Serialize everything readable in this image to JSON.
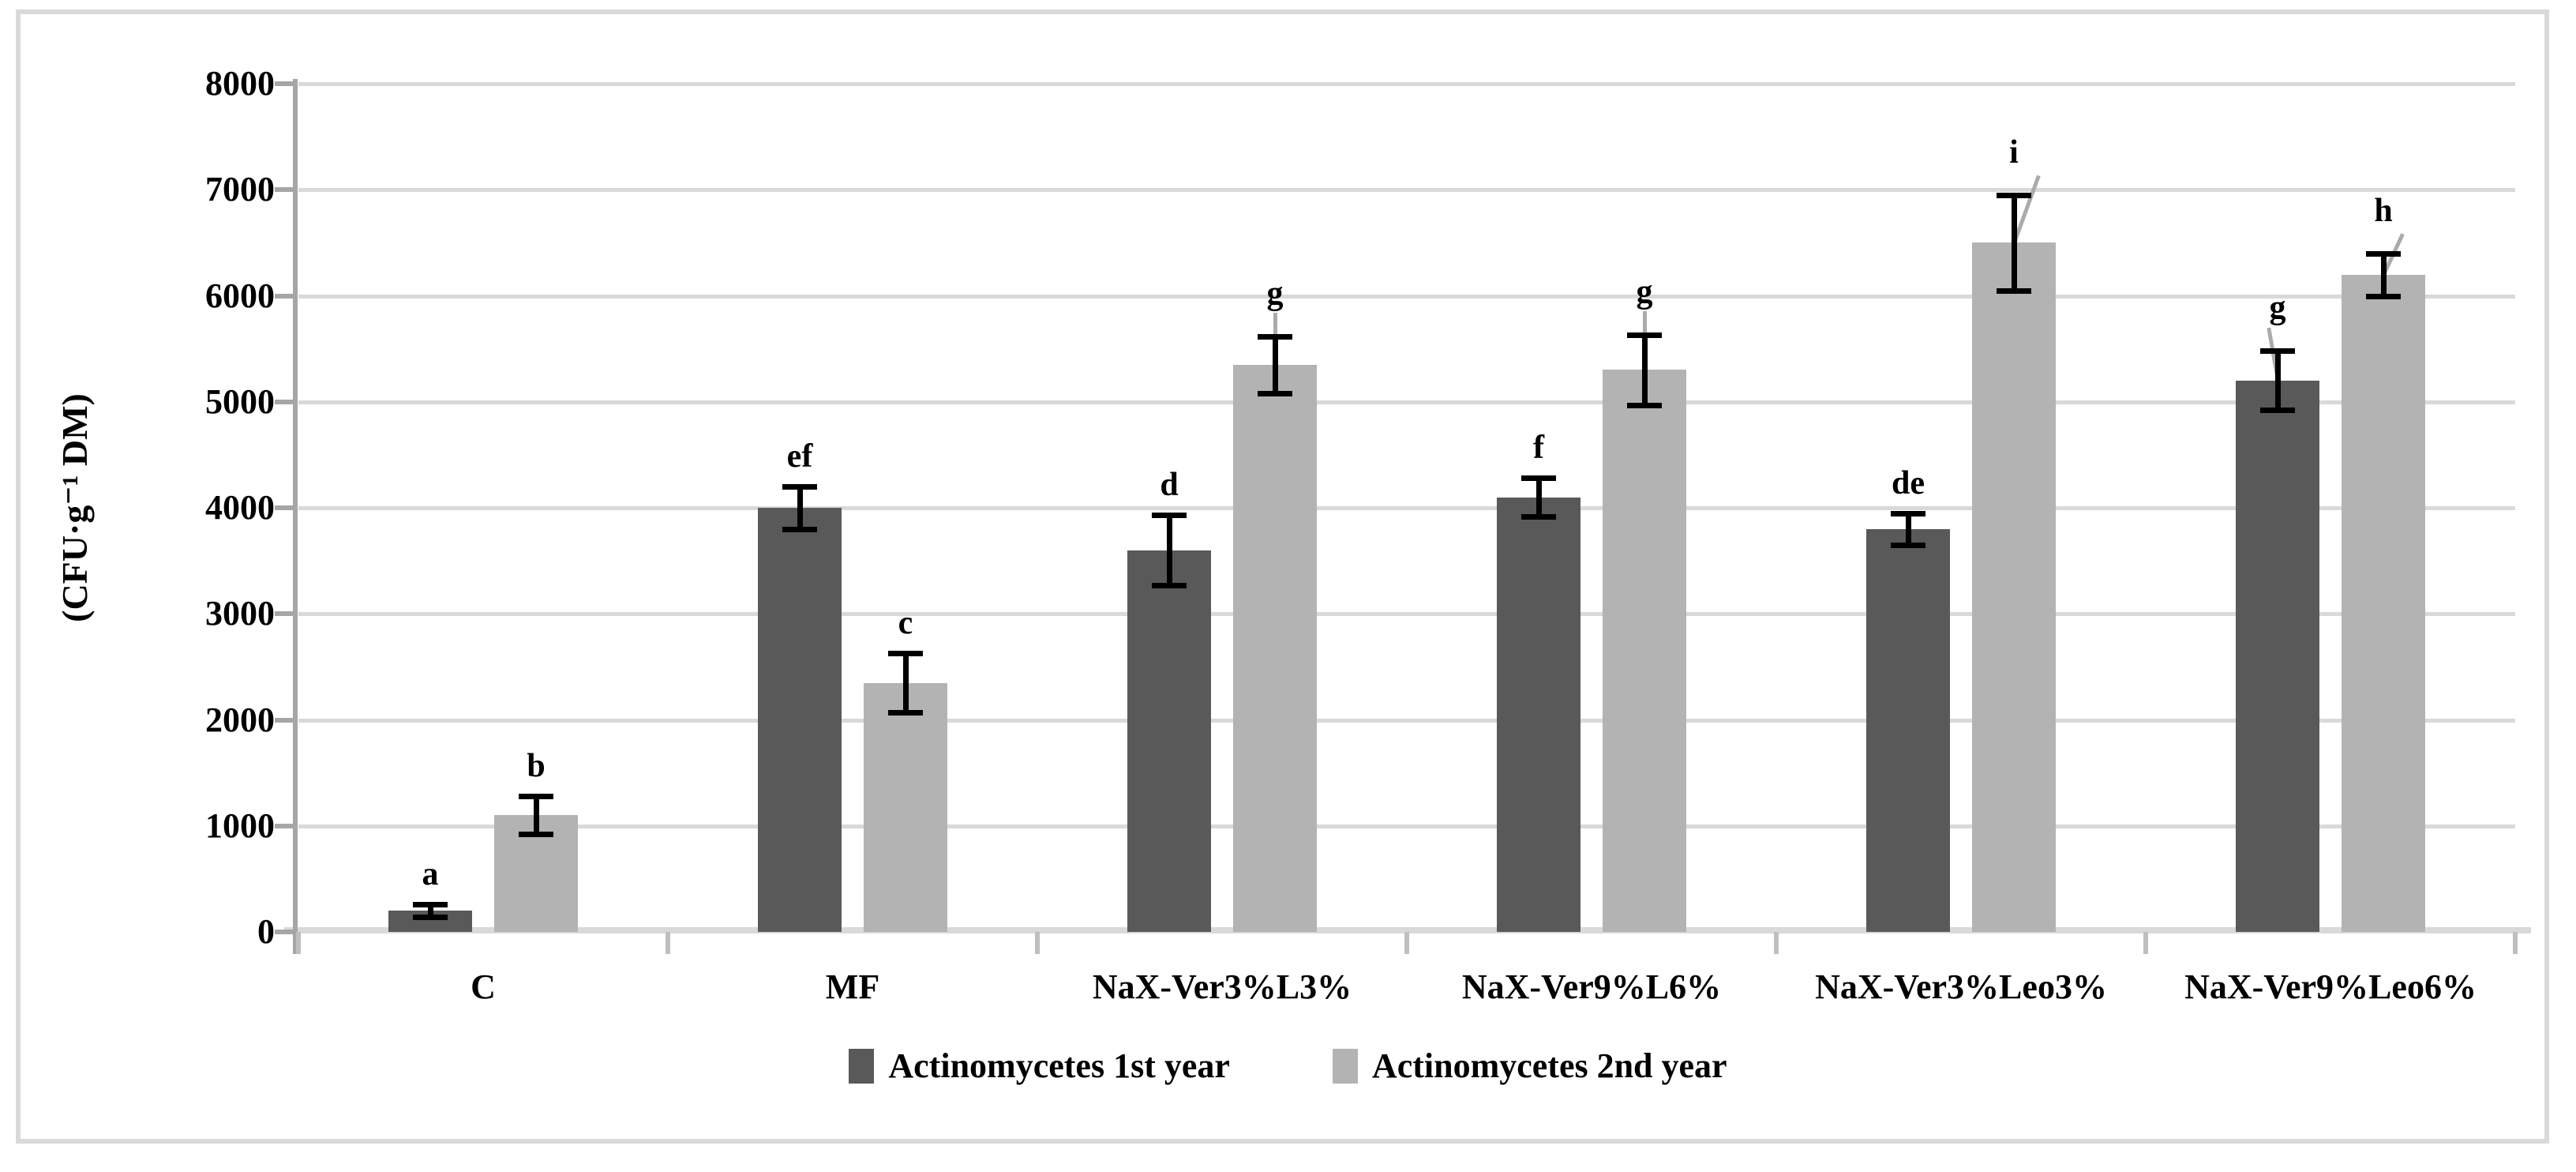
{
  "figure": {
    "background": "#ffffff",
    "frame_color": "#d9d9d9"
  },
  "chart_data": {
    "type": "bar",
    "title": "",
    "ylabel": "(CFU·g⁻¹ DM)",
    "xlabel": "",
    "ylim": [
      0,
      8000
    ],
    "ytick_step": 1000,
    "ytick_labels": [
      "0",
      "1000",
      "2000",
      "3000",
      "4000",
      "5000",
      "6000",
      "7000",
      "8000"
    ],
    "categories": [
      "C",
      "MF",
      "NaX-Ver3%L3%",
      "NaX-Ver9%L6%",
      "NaX-Ver3%Leo3%",
      "NaX-Ver9%Leo6%"
    ],
    "series": [
      {
        "name": "Actinomycetes 1st year",
        "color": "#595959",
        "values": [
          200,
          4000,
          3600,
          4100,
          3800,
          5200
        ],
        "errors": [
          60,
          200,
          330,
          180,
          150,
          280
        ],
        "sig_letters": [
          "a",
          "ef",
          "d",
          "f",
          "de",
          "g"
        ],
        "leader_angles": [
          null,
          null,
          null,
          null,
          null,
          -10
        ]
      },
      {
        "name": "Actinomycetes 2nd year",
        "color": "#b3b3b3",
        "values": [
          1100,
          2350,
          5350,
          5300,
          6500,
          6200
        ],
        "errors": [
          180,
          280,
          270,
          330,
          450,
          200
        ],
        "sig_letters": [
          "b",
          "c",
          "g",
          "g",
          "i",
          "h"
        ],
        "leader_angles": [
          null,
          null,
          0,
          0,
          20,
          25
        ]
      }
    ],
    "grid": true,
    "legend_position": "bottom",
    "error_bar_color": "#000000",
    "gridline_color": "#d9d9d9",
    "baseline_color": "#d9d9d9",
    "axis_line_color": "#a6a6a6",
    "category_tick_color": "#bfbfbf",
    "leader_line_color": "#ababab"
  }
}
